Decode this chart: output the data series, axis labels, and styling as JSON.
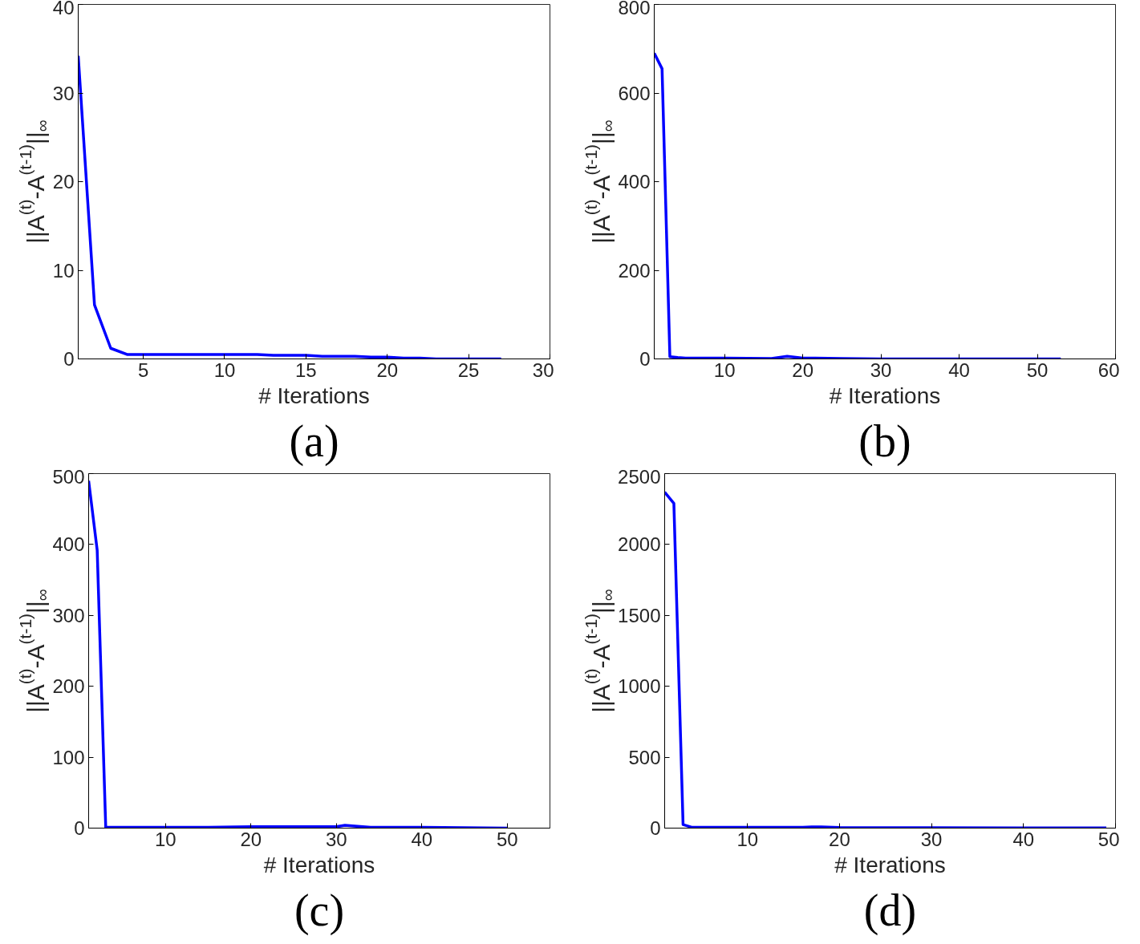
{
  "chart_data": [
    {
      "type": "line",
      "xlabel": "# Iterations",
      "ylabel": "||A$^{(t)}$-A$^{(t-1)}$||$_{∞}$",
      "annotations": [
        "(a)"
      ],
      "xlim": [
        1,
        30
      ],
      "xticks": [
        5,
        10,
        15,
        20,
        25,
        30
      ],
      "ylim": [
        0,
        40
      ],
      "yticks": [
        0,
        10,
        20,
        30,
        40
      ],
      "series": [
        {
          "color": "#0000ff",
          "x": [
            1,
            2,
            3,
            4,
            5,
            6,
            7,
            8,
            9,
            10,
            11,
            12,
            13,
            14,
            15,
            16,
            17,
            18,
            19,
            20,
            21,
            22,
            23,
            24,
            25,
            26,
            27
          ],
          "values": [
            34.2,
            6.1,
            1.2,
            0.5,
            0.5,
            0.5,
            0.5,
            0.5,
            0.5,
            0.5,
            0.5,
            0.5,
            0.4,
            0.4,
            0.4,
            0.3,
            0.3,
            0.3,
            0.2,
            0.2,
            0.1,
            0.1,
            0,
            0,
            0,
            0,
            0
          ]
        }
      ]
    },
    {
      "type": "line",
      "xlabel": "# Iterations",
      "ylabel": "||A$^{(t)}$-A$^{(t-1)}$||$_{∞}$",
      "annotations": [
        "(b)"
      ],
      "xlim": [
        1,
        60
      ],
      "xticks": [
        10,
        20,
        30,
        40,
        50,
        60
      ],
      "ylim": [
        0,
        800
      ],
      "yticks": [
        0,
        200,
        400,
        600,
        800
      ],
      "series": [
        {
          "color": "#0000ff",
          "x": [
            1,
            2,
            3,
            4,
            5,
            10,
            16,
            18,
            20,
            25,
            30,
            40,
            53
          ],
          "values": [
            690,
            655,
            5,
            3,
            2,
            2,
            1,
            6,
            2,
            1,
            0,
            0,
            0
          ]
        }
      ]
    },
    {
      "type": "line",
      "xlabel": "# Iterations",
      "ylabel": "||A$^{(t)}$-A$^{(t-1)}$||$_{∞}$",
      "annotations": [
        "(c)"
      ],
      "xlim": [
        1,
        55
      ],
      "xticks": [
        10,
        20,
        30,
        40,
        50
      ],
      "ylim": [
        0,
        500
      ],
      "yticks": [
        0,
        100,
        200,
        300,
        400,
        500
      ],
      "series": [
        {
          "color": "#0000ff",
          "x": [
            1,
            2,
            3,
            10,
            15,
            20,
            25,
            30,
            31,
            34,
            40,
            50
          ],
          "values": [
            490,
            392,
            1,
            1,
            1,
            2,
            2,
            2,
            4,
            1,
            1,
            0
          ]
        }
      ]
    },
    {
      "type": "line",
      "xlabel": "# Iterations",
      "ylabel": "||A$^{(t)}$-A$^{(t-1)}$||$_{∞}$",
      "annotations": [
        "(d)"
      ],
      "xlim": [
        1,
        50
      ],
      "xticks": [
        10,
        20,
        30,
        40,
        50
      ],
      "ylim": [
        0,
        2500
      ],
      "yticks": [
        0,
        500,
        1000,
        1500,
        2000,
        2500
      ],
      "series": [
        {
          "color": "#0000ff",
          "x": [
            1,
            2,
            3,
            4,
            10,
            16,
            17,
            18,
            20,
            30,
            40,
            49
          ],
          "values": [
            2370,
            2290,
            25,
            5,
            5,
            5,
            8,
            8,
            4,
            3,
            2,
            1
          ]
        }
      ]
    }
  ]
}
